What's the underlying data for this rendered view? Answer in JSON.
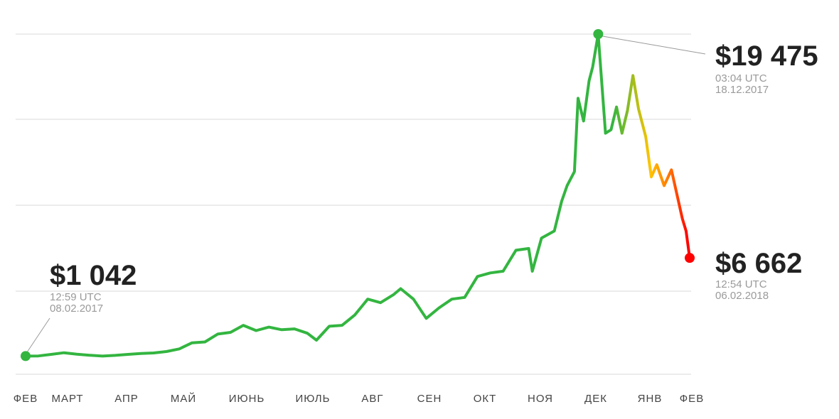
{
  "chart_data": {
    "type": "line",
    "title": "",
    "xlabel": "",
    "ylabel": "",
    "ylim": [
      0,
      20000
    ],
    "grid": true,
    "months": [
      "ФЕВ",
      "МАРТ",
      "АПР",
      "МАЙ",
      "ИЮНЬ",
      "ИЮЛЬ",
      "АВГ",
      "СЕН",
      "ОКТ",
      "НОЯ",
      "ДЕК",
      "ЯНВ",
      "ФЕВ"
    ],
    "colors": {
      "line": "#33b540",
      "grid": "#d8d8d8",
      "low_color": "#ff0000",
      "mid_color": "#ffc400"
    },
    "series": [
      {
        "x": [
          "2017-02-08",
          "2017-02-15",
          "2017-02-22",
          "2017-03-01",
          "2017-03-08",
          "2017-03-15",
          "2017-03-22",
          "2017-03-29",
          "2017-04-05",
          "2017-04-12",
          "2017-04-19",
          "2017-04-26",
          "2017-05-03",
          "2017-05-10",
          "2017-05-17",
          "2017-05-24",
          "2017-05-31",
          "2017-06-07",
          "2017-06-14",
          "2017-06-21",
          "2017-06-28",
          "2017-07-05",
          "2017-07-12",
          "2017-07-17",
          "2017-07-24",
          "2017-07-31",
          "2017-08-07",
          "2017-08-14",
          "2017-08-21",
          "2017-08-28",
          "2017-09-01",
          "2017-09-08",
          "2017-09-15",
          "2017-09-22",
          "2017-09-29",
          "2017-10-06",
          "2017-10-13",
          "2017-10-20",
          "2017-10-27",
          "2017-11-03",
          "2017-11-10",
          "2017-11-12",
          "2017-11-17",
          "2017-11-24",
          "2017-11-28",
          "2017-12-01",
          "2017-12-05",
          "2017-12-07",
          "2017-12-10",
          "2017-12-13",
          "2017-12-15",
          "2017-12-18",
          "2017-12-22",
          "2017-12-25",
          "2017-12-28",
          "2017-12-31",
          "2018-01-03",
          "2018-01-06",
          "2018-01-09",
          "2018-01-13",
          "2018-01-16",
          "2018-01-19",
          "2018-01-23",
          "2018-01-27",
          "2018-01-30",
          "2018-02-02",
          "2018-02-04",
          "2018-02-06"
        ],
        "values": [
          1042,
          1050,
          1140,
          1230,
          1150,
          1090,
          1040,
          1080,
          1140,
          1190,
          1220,
          1300,
          1450,
          1800,
          1850,
          2300,
          2400,
          2800,
          2500,
          2700,
          2550,
          2600,
          2350,
          1950,
          2750,
          2800,
          3400,
          4300,
          4100,
          4550,
          4900,
          4300,
          3200,
          3800,
          4300,
          4400,
          5600,
          5800,
          5900,
          7100,
          7200,
          5900,
          7800,
          8200,
          9900,
          10800,
          11600,
          15800,
          14500,
          16800,
          17600,
          19475,
          13800,
          14000,
          15300,
          13800,
          15100,
          17100,
          15200,
          13600,
          11300,
          12000,
          10800,
          11700,
          10300,
          8900,
          8200,
          6662
        ]
      }
    ],
    "annotations": [
      {
        "price": "$1 042",
        "time": "12:59 UTC",
        "date": "08.02.2017"
      },
      {
        "price": "$19 475",
        "time": "03:04 UTC",
        "date": "18.12.2017"
      },
      {
        "price": "$6 662",
        "time": "12:54 UTC",
        "date": "06.02.2018"
      }
    ]
  }
}
